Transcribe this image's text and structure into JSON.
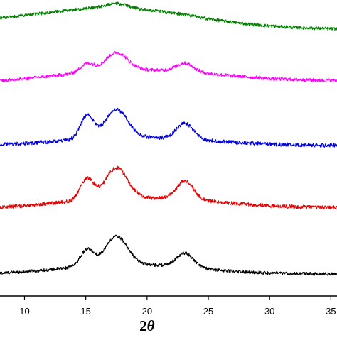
{
  "chart_data": {
    "type": "line",
    "title": "",
    "xlabel_prefix": "2",
    "xlabel_symbol": "θ",
    "ylabel": "",
    "xlim": [
      8,
      35.5
    ],
    "x_ticks": [
      10,
      15,
      20,
      25,
      30,
      35
    ],
    "x_tick_labels": [
      "10",
      "15",
      "20",
      "25",
      "30",
      "35"
    ],
    "grid": false,
    "legend": "none",
    "peaks": [
      {
        "center": 15.1,
        "width": 0.55
      },
      {
        "center": 17.5,
        "width": 0.9
      },
      {
        "center": 23.1,
        "width": 0.7
      }
    ],
    "series": [
      {
        "color": "#000000",
        "offset": 0,
        "baseline_start": 3,
        "baseline_end": 4,
        "hump_center": 18.5,
        "hump_height": 14,
        "hump_width": 5.5,
        "peak_heights": [
          23,
          40,
          20
        ],
        "noise": 2.2
      },
      {
        "color": "#e60000",
        "offset": 92,
        "baseline_start": 2,
        "baseline_end": 5,
        "hump_center": 19,
        "hump_height": 16,
        "hump_width": 6.5,
        "peak_heights": [
          30,
          43,
          26
        ],
        "noise": 2.6
      },
      {
        "color": "#0000dd",
        "offset": 182,
        "baseline_start": 2,
        "baseline_end": 3,
        "hump_center": 19,
        "hump_height": 12,
        "hump_width": 6,
        "peak_heights": [
          33,
          40,
          22
        ],
        "noise": 2.6
      },
      {
        "color": "#ff00ff",
        "offset": 266,
        "baseline_start": 6,
        "baseline_end": 10,
        "hump_center": 19,
        "hump_height": 18,
        "hump_width": 6.5,
        "peak_heights": [
          12,
          25,
          12
        ],
        "noise": 2.4
      },
      {
        "color": "#008000",
        "offset": 342,
        "baseline_start": 16,
        "baseline_end": 7,
        "hump_center": 17.5,
        "hump_height": 24,
        "hump_width": 6,
        "peak_heights": [
          0,
          6,
          1
        ],
        "noise": 2.2
      }
    ]
  }
}
